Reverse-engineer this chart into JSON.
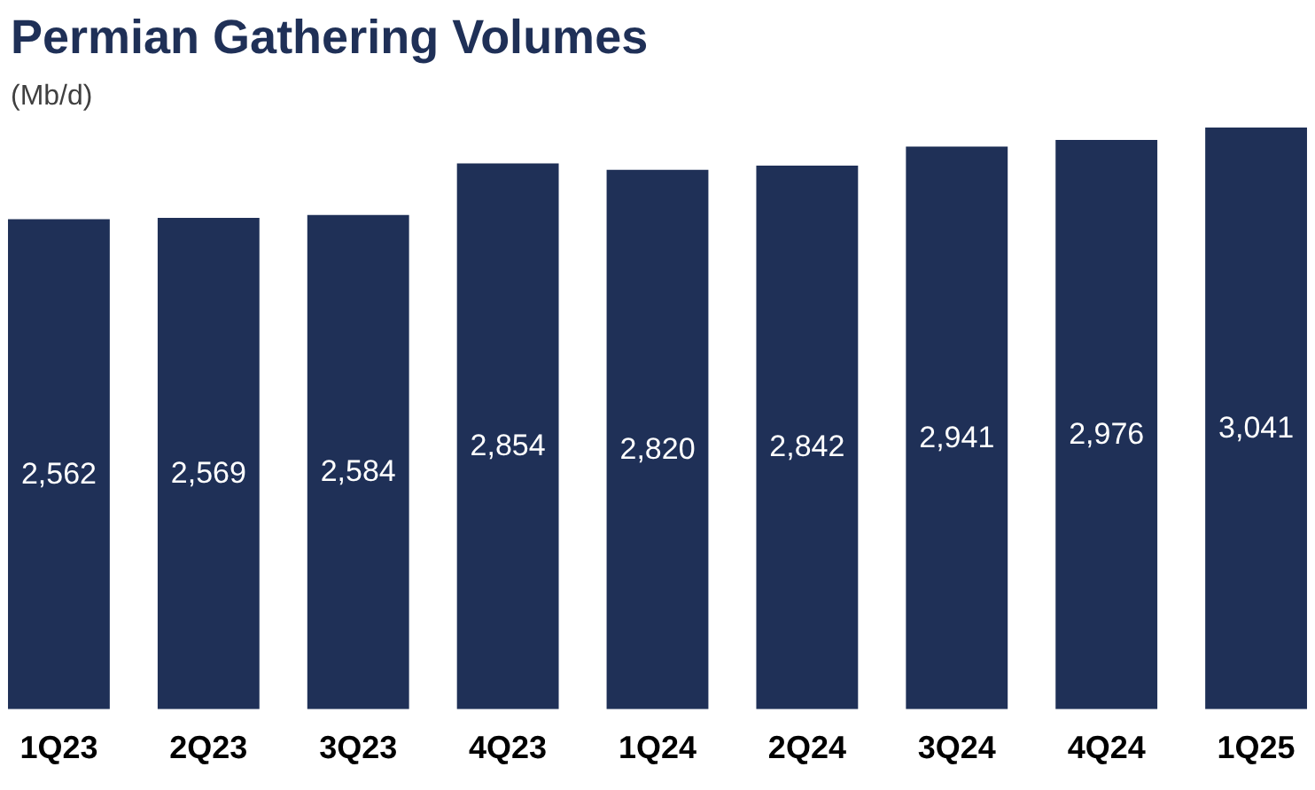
{
  "chart_data": {
    "type": "bar",
    "title": "Permian Gathering Volumes",
    "subtitle": "(Mb/d)",
    "categories": [
      "1Q23",
      "2Q23",
      "3Q23",
      "4Q23",
      "1Q24",
      "2Q24",
      "3Q24",
      "4Q24",
      "1Q25"
    ],
    "values": [
      2562,
      2569,
      2584,
      2854,
      2820,
      2842,
      2941,
      2976,
      3041
    ],
    "value_labels": [
      "2,562",
      "2,569",
      "2,584",
      "2,854",
      "2,820",
      "2,842",
      "2,941",
      "2,976",
      "3,041"
    ],
    "color": "#1f3057",
    "grid": false,
    "legend": false,
    "tick_labels": "x"
  }
}
